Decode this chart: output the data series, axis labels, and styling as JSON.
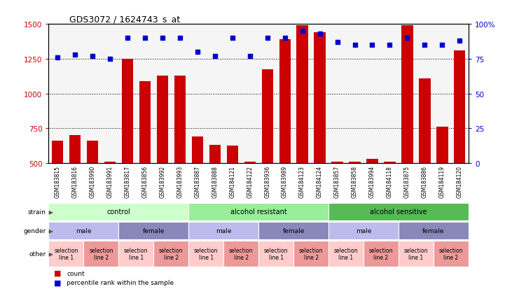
{
  "title": "GDS3072 / 1624743_s_at",
  "samples": [
    "GSM183815",
    "GSM183816",
    "GSM183990",
    "GSM183991",
    "GSM183817",
    "GSM183856",
    "GSM183992",
    "GSM183993",
    "GSM183887",
    "GSM183888",
    "GSM184121",
    "GSM184122",
    "GSM183936",
    "GSM183989",
    "GSM184123",
    "GSM184124",
    "GSM183857",
    "GSM183858",
    "GSM183994",
    "GSM184118",
    "GSM183875",
    "GSM183886",
    "GSM184119",
    "GSM184120"
  ],
  "counts": [
    660,
    700,
    660,
    510,
    1250,
    1090,
    1130,
    1130,
    690,
    630,
    625,
    510,
    1175,
    1390,
    1490,
    1440,
    510,
    510,
    530,
    510,
    1490,
    1110,
    760,
    1310
  ],
  "percentiles": [
    76,
    78,
    77,
    75,
    90,
    90,
    90,
    90,
    80,
    77,
    90,
    77,
    90,
    90,
    95,
    93,
    87,
    85,
    85,
    85,
    90,
    85,
    85,
    88
  ],
  "ylim_left": [
    500,
    1500
  ],
  "ylim_right": [
    0,
    100
  ],
  "yticks_left": [
    500,
    750,
    1000,
    1250,
    1500
  ],
  "yticks_right": [
    0,
    25,
    50,
    75,
    100
  ],
  "bar_color": "#cc0000",
  "dot_color": "#0000cc",
  "strain_groups": [
    {
      "label": "control",
      "start": 0,
      "end": 7,
      "color": "#ccffcc"
    },
    {
      "label": "alcohol resistant",
      "start": 8,
      "end": 15,
      "color": "#99ee99"
    },
    {
      "label": "alcohol sensitive",
      "start": 16,
      "end": 23,
      "color": "#55bb55"
    }
  ],
  "gender_groups": [
    {
      "label": "male",
      "start": 0,
      "end": 3,
      "color": "#bbbbee"
    },
    {
      "label": "female",
      "start": 4,
      "end": 7,
      "color": "#8888bb"
    },
    {
      "label": "male",
      "start": 8,
      "end": 11,
      "color": "#bbbbee"
    },
    {
      "label": "female",
      "start": 12,
      "end": 15,
      "color": "#8888bb"
    },
    {
      "label": "male",
      "start": 16,
      "end": 19,
      "color": "#bbbbee"
    },
    {
      "label": "female",
      "start": 20,
      "end": 23,
      "color": "#8888bb"
    }
  ],
  "other_groups": [
    {
      "label": "selection\nline 1",
      "start": 0,
      "end": 1,
      "color": "#ffcccc"
    },
    {
      "label": "selection\nline 2",
      "start": 2,
      "end": 3,
      "color": "#ee9999"
    },
    {
      "label": "selection\nline 1",
      "start": 4,
      "end": 5,
      "color": "#ffcccc"
    },
    {
      "label": "selection\nline 2",
      "start": 6,
      "end": 7,
      "color": "#ee9999"
    },
    {
      "label": "selection\nline 1",
      "start": 8,
      "end": 9,
      "color": "#ffcccc"
    },
    {
      "label": "selection\nline 2",
      "start": 10,
      "end": 11,
      "color": "#ee9999"
    },
    {
      "label": "selection\nline 1",
      "start": 12,
      "end": 13,
      "color": "#ffcccc"
    },
    {
      "label": "selection\nline 2",
      "start": 14,
      "end": 15,
      "color": "#ee9999"
    },
    {
      "label": "selection\nline 1",
      "start": 16,
      "end": 17,
      "color": "#ffcccc"
    },
    {
      "label": "selection\nline 2",
      "start": 18,
      "end": 19,
      "color": "#ee9999"
    },
    {
      "label": "selection\nline 1",
      "start": 20,
      "end": 21,
      "color": "#ffcccc"
    },
    {
      "label": "selection\nline 2",
      "start": 22,
      "end": 23,
      "color": "#ee9999"
    }
  ],
  "legend_count_color": "#cc0000",
  "legend_dot_color": "#0000cc",
  "background_color": "#ffffff",
  "plot_bg_color": "#f5f5f5",
  "hgrid_color": "black",
  "row_labels": [
    "strain",
    "gender",
    "other"
  ],
  "row_label_color": "#333333"
}
